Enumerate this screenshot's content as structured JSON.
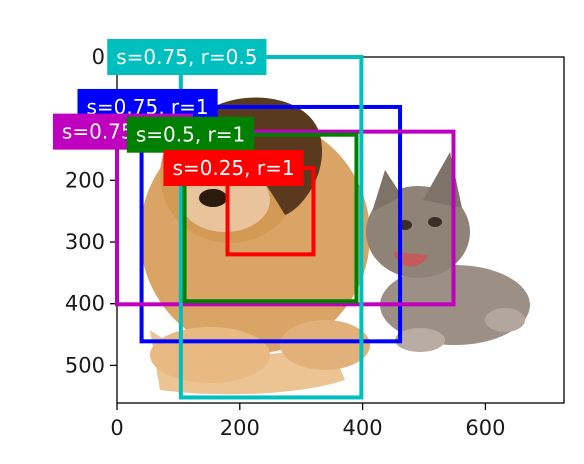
{
  "chart_data": {
    "type": "image-annotation",
    "title": "",
    "xlabel": "",
    "ylabel": "",
    "xlim": [
      0,
      728
    ],
    "ylim": [
      561,
      0
    ],
    "x_ticks": [
      0,
      200,
      400,
      600
    ],
    "y_ticks": [
      0,
      100,
      200,
      300,
      400,
      500
    ],
    "y_tick_labels": [
      "0",
      "",
      "200",
      "300",
      "400",
      "500"
    ],
    "image_subject": [
      "puppy",
      "kitten"
    ],
    "anchor_boxes": [
      {
        "label": "s=0.75, r=1",
        "x1": 40,
        "y1": 81,
        "x2": 461,
        "y2": 461,
        "color": "#0000ff"
      },
      {
        "label": "s=0.75, r=2",
        "x1": 0,
        "y1": 121,
        "x2": 548,
        "y2": 401,
        "color": "#bf00bf"
      },
      {
        "label": "s=0.75, r=0.5",
        "x1": 104,
        "y1": 0,
        "x2": 398,
        "y2": 552,
        "color": "#00bfbf"
      },
      {
        "label": "s=0.5, r=1",
        "x1": 110,
        "y1": 126,
        "x2": 390,
        "y2": 396,
        "color": "#008000"
      },
      {
        "label": "s=0.25, r=1",
        "x1": 180,
        "y1": 180,
        "x2": 320,
        "y2": 320,
        "color": "#ff0000"
      }
    ]
  }
}
